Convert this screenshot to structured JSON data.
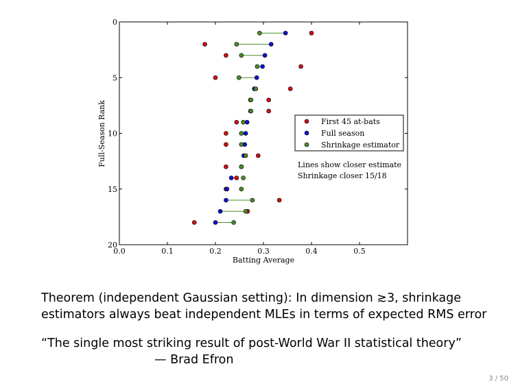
{
  "chart_data": {
    "type": "scatter",
    "xlabel": "Batting Average",
    "ylabel": "Full-Season Rank",
    "xlim": [
      0.0,
      0.6
    ],
    "ylim": [
      20,
      0
    ],
    "xticks": [
      "0.0",
      "0.1",
      "0.2",
      "0.3",
      "0.4",
      "0.5"
    ],
    "yticks": [
      "0",
      "5",
      "10",
      "15",
      "20"
    ],
    "grid": false,
    "legend_position": "right",
    "series": [
      {
        "name": "First 45 at-bats",
        "color": "#cc1111",
        "points": [
          [
            0.4,
            1
          ],
          [
            0.178,
            2
          ],
          [
            0.222,
            3
          ],
          [
            0.378,
            4
          ],
          [
            0.2,
            5
          ],
          [
            0.356,
            6
          ],
          [
            0.311,
            7
          ],
          [
            0.311,
            8
          ],
          [
            0.244,
            9
          ],
          [
            0.222,
            10
          ],
          [
            0.222,
            11
          ],
          [
            0.289,
            12
          ],
          [
            0.222,
            13
          ],
          [
            0.244,
            14
          ],
          [
            0.222,
            15
          ],
          [
            0.333,
            16
          ],
          [
            0.267,
            17
          ],
          [
            0.156,
            18
          ]
        ]
      },
      {
        "name": "Full season",
        "color": "#1111cc",
        "points": [
          [
            0.346,
            1
          ],
          [
            0.316,
            2
          ],
          [
            0.303,
            3
          ],
          [
            0.298,
            4
          ],
          [
            0.286,
            5
          ],
          [
            0.281,
            6
          ],
          [
            0.273,
            7
          ],
          [
            0.273,
            8
          ],
          [
            0.266,
            9
          ],
          [
            0.263,
            10
          ],
          [
            0.261,
            11
          ],
          [
            0.259,
            12
          ],
          [
            0.254,
            13
          ],
          [
            0.233,
            14
          ],
          [
            0.224,
            15
          ],
          [
            0.222,
            16
          ],
          [
            0.21,
            17
          ],
          [
            0.2,
            18
          ]
        ]
      },
      {
        "name": "Shrinkage estimator",
        "color": "#4a8a2a",
        "points": [
          [
            0.292,
            1
          ],
          [
            0.244,
            2
          ],
          [
            0.254,
            3
          ],
          [
            0.287,
            4
          ],
          [
            0.249,
            5
          ],
          [
            0.284,
            6
          ],
          [
            0.274,
            7
          ],
          [
            0.274,
            8
          ],
          [
            0.258,
            9
          ],
          [
            0.254,
            10
          ],
          [
            0.254,
            11
          ],
          [
            0.263,
            12
          ],
          [
            0.254,
            13
          ],
          [
            0.258,
            14
          ],
          [
            0.254,
            15
          ],
          [
            0.277,
            16
          ],
          [
            0.263,
            17
          ],
          [
            0.238,
            18
          ]
        ]
      }
    ],
    "annotations": [
      "Lines show closer estimate",
      "Shrinkage closer 15/18"
    ]
  },
  "theorem": {
    "line1": "Theorem (independent Gaussian setting): In dimension ≳3, shrinkage",
    "line2": "estimators always beat independent MLEs in terms of expected RMS error"
  },
  "quote": {
    "text": "“The single most striking result of post-World War II statistical theory”",
    "attribution": "— Brad Efron"
  },
  "page_number": "3 / 50"
}
